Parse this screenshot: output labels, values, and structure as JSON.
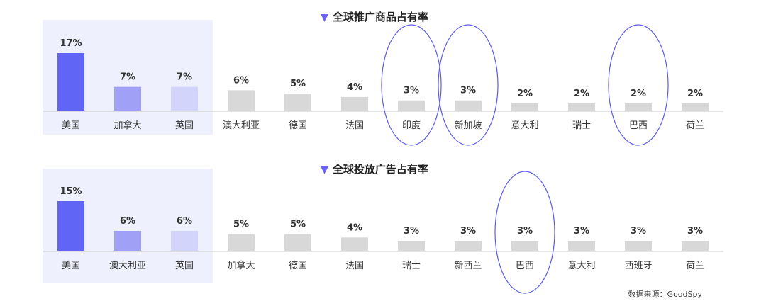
{
  "source_label": "数据来源：GoodSpy",
  "colors": {
    "highlight_band": "#eef0fd",
    "bar_primary": "#6165f5",
    "bar_secondary": "#9fa0f6",
    "bar_tertiary": "#d3d4fb",
    "bar_other": "#d8d8d8",
    "circle_stroke": "#5b5bf0",
    "axis": "#cccccc"
  },
  "chart_data": [
    {
      "type": "bar",
      "title": "全球推广商品占有率",
      "categories": [
        "美国",
        "加拿大",
        "英国",
        "澳大利亚",
        "德国",
        "法国",
        "印度",
        "新加坡",
        "意大利",
        "瑞士",
        "巴西",
        "荷兰"
      ],
      "values": [
        17,
        7,
        7,
        6,
        5,
        4,
        3,
        3,
        2,
        2,
        2,
        2
      ],
      "labels": [
        "17%",
        "7%",
        "7%",
        "6%",
        "5%",
        "4%",
        "3%",
        "3%",
        "2%",
        "2%",
        "2%",
        "2%"
      ],
      "highlighted_top": 3,
      "circled": [
        "印度",
        "新加坡",
        "巴西"
      ],
      "ylim": [
        0,
        17
      ]
    },
    {
      "type": "bar",
      "title": "全球投放广告占有率",
      "categories": [
        "美国",
        "澳大利亚",
        "英国",
        "加拿大",
        "德国",
        "法国",
        "瑞士",
        "新西兰",
        "巴西",
        "意大利",
        "西班牙",
        "荷兰"
      ],
      "values": [
        15,
        6,
        6,
        5,
        5,
        4,
        3,
        3,
        3,
        3,
        3,
        3
      ],
      "labels": [
        "15%",
        "6%",
        "6%",
        "5%",
        "5%",
        "4%",
        "3%",
        "3%",
        "3%",
        "3%",
        "3%",
        "3%"
      ],
      "highlighted_top": 3,
      "circled": [
        "巴西"
      ],
      "ylim": [
        0,
        15
      ]
    }
  ]
}
